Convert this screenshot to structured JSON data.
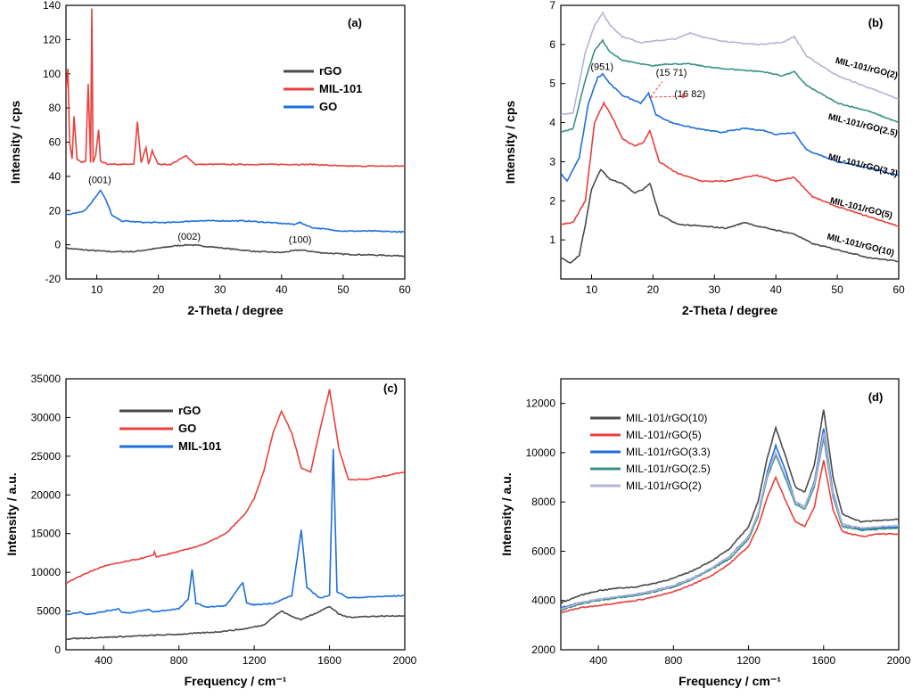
{
  "chart_data": [
    {
      "panel": "(a)",
      "type": "line",
      "xlabel": "2-Theta / degree",
      "ylabel": "Intensity / cps",
      "xlim": [
        5,
        60
      ],
      "ylim": [
        -20,
        140
      ],
      "xticks": [
        10,
        20,
        30,
        40,
        50,
        60
      ],
      "yticks": [
        -20,
        0,
        20,
        40,
        60,
        80,
        100,
        120,
        140
      ],
      "legend": [
        "rGO",
        "MIL-101",
        "GO"
      ],
      "annotations": [
        {
          "text": "(001)",
          "x": 10.5,
          "y": 36
        },
        {
          "text": "(002)",
          "x": 25,
          "y": 3
        },
        {
          "text": "(100)",
          "x": 43,
          "y": 1
        }
      ],
      "series": [
        {
          "name": "rGO",
          "color": "#4a4a4a",
          "x": [
            5,
            8,
            12,
            16,
            20,
            23,
            25,
            28,
            32,
            36,
            40,
            43,
            46,
            50,
            55,
            60
          ],
          "y": [
            -2,
            -3,
            -4,
            -4,
            -2,
            -0.5,
            0,
            -1,
            -2.5,
            -4,
            -4.5,
            -3,
            -4.5,
            -5.5,
            -6,
            -6.5
          ]
        },
        {
          "name": "MIL-101",
          "color": "#e8403c",
          "x": [
            5,
            5.3,
            5.6,
            6,
            6.3,
            6.8,
            7.5,
            8.2,
            8.6,
            9,
            9.2,
            9.4,
            9.8,
            10.3,
            10.6,
            11,
            12,
            14,
            16,
            16.6,
            17.2,
            18,
            18.4,
            19,
            20,
            22,
            24.5,
            26,
            30,
            35,
            40,
            45,
            50,
            55,
            60
          ],
          "y": [
            90,
            103,
            60,
            50,
            75,
            50,
            48,
            49,
            94,
            48,
            138,
            48,
            52,
            67,
            49,
            48,
            47,
            47,
            47,
            72,
            48,
            57,
            47,
            55,
            47,
            47,
            52,
            47,
            47,
            47,
            47,
            47,
            46,
            46,
            46
          ]
        },
        {
          "name": "GO",
          "color": "#1e6fd9",
          "x": [
            5,
            6,
            8,
            9,
            10,
            10.6,
            11.5,
            12.5,
            14,
            18,
            22,
            26,
            30,
            34,
            38,
            42,
            43,
            45,
            50,
            55,
            60
          ],
          "y": [
            18,
            18,
            20,
            24,
            29,
            32,
            26,
            17,
            14,
            13,
            13,
            14,
            14,
            14,
            13,
            12,
            13,
            10,
            8,
            8,
            7.5
          ]
        }
      ]
    },
    {
      "panel": "(b)",
      "type": "line",
      "xlabel": "2-Theta / degree",
      "ylabel": "Intensity / cps",
      "xlim": [
        5,
        60
      ],
      "ylim": [
        0,
        7
      ],
      "xticks": [
        10,
        20,
        30,
        40,
        50,
        60
      ],
      "yticks": [
        1,
        2,
        3,
        4,
        5,
        6,
        7
      ],
      "annotations": [
        {
          "text": "(951)",
          "x": 11.7,
          "y": 5.35
        },
        {
          "text": "(15 71)",
          "x": 23,
          "y": 5.2
        },
        {
          "text": "(16 82)",
          "x": 26,
          "y": 4.65
        }
      ],
      "series": [
        {
          "name": "MIL-101/rGO(2)",
          "color": "#b4b4d6",
          "x": [
            5,
            7,
            9,
            10.5,
            11.8,
            13,
            15,
            18,
            21,
            24,
            26,
            29,
            33,
            37,
            41,
            43,
            45,
            50,
            55,
            60
          ],
          "y": [
            4.2,
            4.25,
            5.8,
            6.5,
            6.8,
            6.5,
            6.2,
            6.05,
            6.1,
            6.15,
            6.3,
            6.15,
            6.05,
            6.0,
            6.05,
            6.2,
            5.7,
            5.2,
            4.9,
            4.6
          ]
        },
        {
          "name": "MIL-101/rGO(2.5)",
          "color": "#3a9185",
          "x": [
            5,
            7,
            9,
            10.5,
            11.8,
            13,
            15,
            18,
            20,
            22,
            26,
            30,
            34,
            38,
            41,
            43,
            45,
            50,
            55,
            60
          ],
          "y": [
            3.75,
            3.85,
            5.1,
            5.85,
            6.1,
            5.8,
            5.6,
            5.5,
            5.45,
            5.5,
            5.5,
            5.4,
            5.35,
            5.3,
            5.2,
            5.3,
            4.95,
            4.5,
            4.3,
            4.0
          ]
        },
        {
          "name": "MIL-101/rGO(3.3)",
          "color": "#1e6fd9",
          "x": [
            5,
            6,
            8,
            9.5,
            11,
            11.8,
            13,
            15,
            16.5,
            18,
            19.3,
            20.5,
            23,
            27,
            31,
            35,
            38,
            40,
            43,
            45,
            50,
            55,
            60
          ],
          "y": [
            2.7,
            2.5,
            3.1,
            4.5,
            5.15,
            5.25,
            5.0,
            4.7,
            4.6,
            4.5,
            4.75,
            4.2,
            4.0,
            3.85,
            3.75,
            3.85,
            3.8,
            3.7,
            3.75,
            3.3,
            3.0,
            2.85,
            2.65
          ]
        },
        {
          "name": "MIL-101/rGO(5)",
          "color": "#e8403c",
          "x": [
            5,
            7,
            9,
            10.5,
            12,
            13.5,
            15,
            17,
            18.5,
            19.5,
            21,
            24,
            28,
            32,
            35,
            37,
            40,
            43,
            46,
            50,
            55,
            60
          ],
          "y": [
            1.4,
            1.45,
            2.0,
            4.0,
            4.5,
            4.1,
            3.6,
            3.4,
            3.5,
            3.8,
            3.0,
            2.7,
            2.5,
            2.5,
            2.6,
            2.65,
            2.5,
            2.6,
            2.1,
            1.85,
            1.6,
            1.35
          ]
        },
        {
          "name": "MIL-101/rGO(10)",
          "color": "#4a4a4a",
          "x": [
            5,
            6.5,
            8,
            9,
            10,
            11.5,
            13,
            15,
            17,
            18.5,
            19.5,
            21,
            24,
            28,
            32,
            35,
            37,
            40,
            43,
            46,
            50,
            55,
            60
          ],
          "y": [
            0.55,
            0.4,
            0.6,
            1.4,
            2.3,
            2.8,
            2.55,
            2.45,
            2.2,
            2.3,
            2.45,
            1.65,
            1.4,
            1.35,
            1.3,
            1.45,
            1.35,
            1.25,
            1.15,
            0.9,
            0.75,
            0.55,
            0.45
          ]
        }
      ]
    },
    {
      "panel": "(c)",
      "type": "line",
      "xlabel": "Frequency / cm⁻¹",
      "ylabel": "Intensity / a.u.",
      "xlim": [
        200,
        2000
      ],
      "ylim": [
        0,
        35000
      ],
      "xticks": [
        400,
        800,
        1200,
        1600,
        2000
      ],
      "yticks": [
        0,
        5000,
        10000,
        15000,
        20000,
        25000,
        30000,
        35000
      ],
      "legend": [
        "rGO",
        "GO",
        "MIL-101"
      ],
      "series": [
        {
          "name": "rGO",
          "color": "#4a4a4a",
          "x": [
            200,
            400,
            600,
            800,
            1000,
            1150,
            1250,
            1300,
            1345,
            1400,
            1450,
            1550,
            1600,
            1650,
            1700,
            1800,
            2000
          ],
          "y": [
            1400,
            1600,
            1800,
            2000,
            2300,
            2700,
            3200,
            4200,
            5000,
            4300,
            3900,
            5000,
            5600,
            4600,
            4200,
            4300,
            4400
          ]
        },
        {
          "name": "GO",
          "color": "#e8403c",
          "x": [
            200,
            300,
            400,
            500,
            600,
            665,
            670,
            680,
            750,
            850,
            950,
            1050,
            1150,
            1200,
            1250,
            1300,
            1345,
            1400,
            1450,
            1500,
            1550,
            1600,
            1650,
            1700,
            1800,
            2000
          ],
          "y": [
            8600,
            9800,
            10800,
            11300,
            11800,
            12200,
            12600,
            12000,
            12400,
            13000,
            13800,
            15000,
            17500,
            19500,
            23000,
            28000,
            30800,
            28000,
            23500,
            23000,
            28500,
            33600,
            26000,
            22000,
            22000,
            23000
          ]
        },
        {
          "name": "MIL-101",
          "color": "#1e6fd9",
          "x": [
            200,
            280,
            300,
            350,
            480,
            500,
            550,
            640,
            660,
            700,
            800,
            850,
            870,
            890,
            950,
            1050,
            1140,
            1160,
            1200,
            1300,
            1400,
            1450,
            1480,
            1550,
            1600,
            1620,
            1640,
            1700,
            1800,
            2000
          ],
          "y": [
            4500,
            4900,
            4600,
            4700,
            5300,
            4800,
            4800,
            5200,
            4900,
            5000,
            5300,
            6500,
            10400,
            6000,
            5500,
            5700,
            8700,
            6000,
            5800,
            6000,
            7000,
            15500,
            8000,
            6700,
            7000,
            26000,
            7500,
            6700,
            6800,
            7000
          ]
        }
      ]
    },
    {
      "panel": "(d)",
      "type": "line",
      "xlabel": "Frequency / cm⁻¹",
      "ylabel": "Intensity / a.u.",
      "xlim": [
        200,
        2000
      ],
      "ylim": [
        2000,
        13000
      ],
      "xticks": [
        400,
        800,
        1200,
        1600,
        2000
      ],
      "yticks": [
        2000,
        4000,
        6000,
        8000,
        10000,
        12000
      ],
      "legend": [
        "MIL-101/rGO(10)",
        "MIL-101/rGO(5)",
        "MIL-101/rGO(3.3)",
        "MIL-101/rGO(2.5)",
        "MIL-101/rGO(2)"
      ],
      "series": [
        {
          "name": "MIL-101/rGO(10)",
          "color": "#4a4a4a",
          "x": [
            200,
            300,
            400,
            500,
            600,
            700,
            800,
            900,
            1000,
            1100,
            1200,
            1250,
            1300,
            1345,
            1400,
            1450,
            1500,
            1550,
            1600,
            1650,
            1700,
            1800,
            1900,
            2000
          ],
          "y": [
            3900,
            4200,
            4400,
            4500,
            4550,
            4700,
            4900,
            5200,
            5600,
            6100,
            7000,
            8000,
            9800,
            11000,
            9800,
            8600,
            8400,
            9500,
            11750,
            9000,
            7500,
            7200,
            7250,
            7300
          ]
        },
        {
          "name": "MIL-101/rGO(5)",
          "color": "#e8403c",
          "x": [
            200,
            300,
            400,
            500,
            600,
            700,
            800,
            900,
            1000,
            1100,
            1200,
            1250,
            1300,
            1345,
            1400,
            1450,
            1500,
            1550,
            1600,
            1650,
            1700,
            1800,
            1900,
            2000
          ],
          "y": [
            3500,
            3700,
            3800,
            3900,
            4000,
            4150,
            4350,
            4650,
            5000,
            5500,
            6200,
            7000,
            8200,
            9000,
            8000,
            7200,
            7000,
            7800,
            9700,
            7700,
            6800,
            6600,
            6700,
            6700
          ]
        },
        {
          "name": "MIL-101/rGO(3.3)",
          "color": "#1e6fd9",
          "x": [
            200,
            300,
            400,
            500,
            600,
            700,
            800,
            900,
            1000,
            1100,
            1200,
            1250,
            1300,
            1345,
            1400,
            1450,
            1500,
            1550,
            1600,
            1650,
            1700,
            1800,
            1900,
            2000
          ],
          "y": [
            3700,
            3900,
            4050,
            4150,
            4250,
            4400,
            4600,
            4900,
            5300,
            5800,
            6600,
            7500,
            9200,
            10300,
            9200,
            8000,
            7800,
            8800,
            11000,
            8400,
            7100,
            6900,
            6950,
            7000
          ]
        },
        {
          "name": "MIL-101/rGO(2.5)",
          "color": "#3a9185",
          "x": [
            200,
            300,
            400,
            500,
            600,
            700,
            800,
            900,
            1000,
            1100,
            1200,
            1250,
            1300,
            1345,
            1400,
            1450,
            1500,
            1550,
            1600,
            1650,
            1700,
            1800,
            1900,
            2000
          ],
          "y": [
            3600,
            3850,
            4000,
            4100,
            4200,
            4350,
            4550,
            4850,
            5250,
            5700,
            6500,
            7400,
            9000,
            9900,
            8900,
            7900,
            7700,
            8600,
            10600,
            8200,
            7000,
            6850,
            6900,
            6950
          ]
        },
        {
          "name": "MIL-101/rGO(2)",
          "color": "#b4b4d6",
          "x": [
            200,
            300,
            400,
            500,
            600,
            700,
            800,
            900,
            1000,
            1100,
            1200,
            1250,
            1300,
            1345,
            1400,
            1450,
            1500,
            1550,
            1600,
            1650,
            1700,
            1800,
            1900,
            2000
          ],
          "y": [
            3650,
            3900,
            4050,
            4150,
            4250,
            4400,
            4600,
            4900,
            5300,
            5800,
            6600,
            7500,
            9100,
            10000,
            9000,
            8000,
            7800,
            8700,
            10800,
            8300,
            7100,
            6950,
            7000,
            7050
          ]
        }
      ]
    }
  ]
}
